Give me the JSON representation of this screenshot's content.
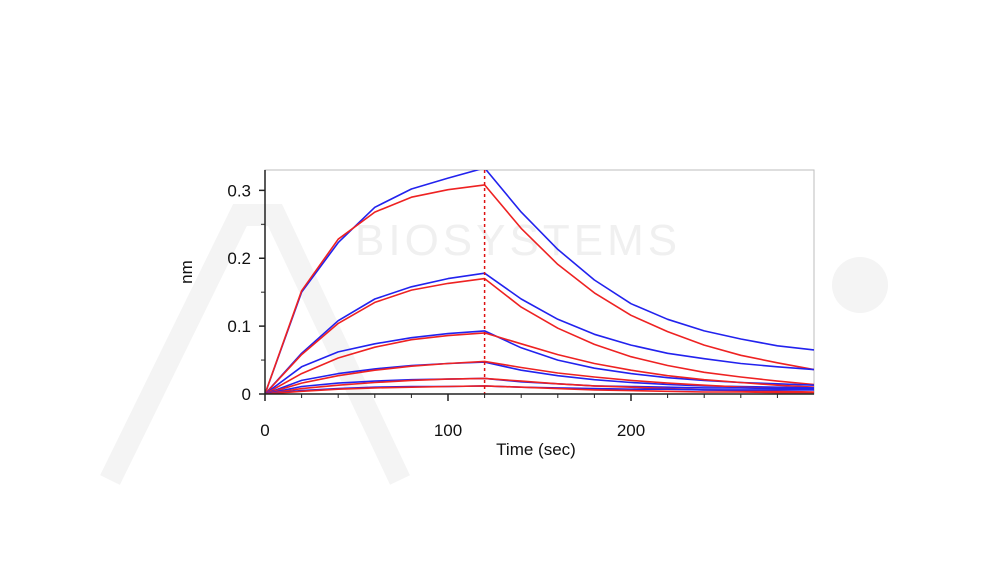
{
  "chart_data": {
    "type": "line",
    "xlabel": "Time (sec)",
    "ylabel": "nm",
    "xlim": [
      0,
      300
    ],
    "ylim": [
      0,
      0.33
    ],
    "x_ticks": [
      0,
      100,
      200
    ],
    "y_ticks": [
      0,
      0.1,
      0.2,
      0.3
    ],
    "x_tick_labels": [
      "0",
      "100",
      "200"
    ],
    "y_tick_labels": [
      "0",
      "0.1",
      "0.2",
      "0.3"
    ],
    "grid": false,
    "legend": false,
    "divider_x": 120,
    "colors": {
      "measured": "#2222ee",
      "fit": "#ee2222",
      "divider": "#dd1111",
      "axis": "#222222"
    },
    "series": [
      {
        "kind": "measured",
        "x": [
          0,
          20,
          40,
          60,
          80,
          100,
          120,
          140,
          160,
          180,
          200,
          220,
          240,
          260,
          280,
          300
        ],
        "y": [
          0,
          0.15,
          0.223,
          0.275,
          0.302,
          0.318,
          0.333,
          0.268,
          0.213,
          0.168,
          0.133,
          0.11,
          0.093,
          0.081,
          0.071,
          0.065
        ]
      },
      {
        "kind": "fit",
        "x": [
          0,
          20,
          40,
          60,
          80,
          100,
          120,
          140,
          160,
          180,
          200,
          220,
          240,
          260,
          280,
          300
        ],
        "y": [
          0,
          0.152,
          0.228,
          0.268,
          0.29,
          0.301,
          0.308,
          0.244,
          0.191,
          0.149,
          0.116,
          0.092,
          0.072,
          0.057,
          0.046,
          0.036
        ]
      },
      {
        "kind": "measured",
        "x": [
          0,
          20,
          40,
          60,
          80,
          100,
          120,
          140,
          160,
          180,
          200,
          220,
          240,
          260,
          280,
          300
        ],
        "y": [
          0,
          0.06,
          0.108,
          0.14,
          0.158,
          0.17,
          0.178,
          0.14,
          0.11,
          0.088,
          0.072,
          0.06,
          0.052,
          0.045,
          0.04,
          0.036
        ]
      },
      {
        "kind": "fit",
        "x": [
          0,
          20,
          40,
          60,
          80,
          100,
          120,
          140,
          160,
          180,
          200,
          220,
          240,
          260,
          280,
          300
        ],
        "y": [
          0,
          0.058,
          0.104,
          0.135,
          0.153,
          0.163,
          0.17,
          0.128,
          0.097,
          0.073,
          0.055,
          0.042,
          0.032,
          0.025,
          0.019,
          0.014
        ]
      },
      {
        "kind": "measured",
        "x": [
          0,
          20,
          40,
          60,
          80,
          100,
          120,
          140,
          160,
          180,
          200,
          220,
          240,
          260,
          280,
          300
        ],
        "y": [
          0,
          0.04,
          0.062,
          0.074,
          0.083,
          0.089,
          0.093,
          0.068,
          0.05,
          0.038,
          0.03,
          0.024,
          0.02,
          0.017,
          0.015,
          0.013
        ]
      },
      {
        "kind": "fit",
        "x": [
          0,
          20,
          40,
          60,
          80,
          100,
          120,
          140,
          160,
          180,
          200,
          220,
          240,
          260,
          280,
          300
        ],
        "y": [
          0,
          0.03,
          0.053,
          0.069,
          0.08,
          0.086,
          0.09,
          0.074,
          0.058,
          0.045,
          0.035,
          0.027,
          0.021,
          0.017,
          0.013,
          0.01
        ]
      },
      {
        "kind": "measured",
        "x": [
          0,
          20,
          40,
          60,
          80,
          100,
          120,
          140,
          160,
          180,
          200,
          220,
          240,
          260,
          280,
          300
        ],
        "y": [
          0,
          0.02,
          0.03,
          0.037,
          0.042,
          0.045,
          0.047,
          0.035,
          0.027,
          0.021,
          0.017,
          0.014,
          0.012,
          0.011,
          0.01,
          0.009
        ]
      },
      {
        "kind": "fit",
        "x": [
          0,
          20,
          40,
          60,
          80,
          100,
          120,
          140,
          160,
          180,
          200,
          220,
          240,
          260,
          280,
          300
        ],
        "y": [
          0,
          0.016,
          0.027,
          0.035,
          0.041,
          0.045,
          0.048,
          0.039,
          0.031,
          0.025,
          0.02,
          0.016,
          0.013,
          0.01,
          0.008,
          0.007
        ]
      },
      {
        "kind": "measured",
        "x": [
          0,
          20,
          40,
          60,
          80,
          100,
          120,
          140,
          160,
          180,
          200,
          220,
          240,
          260,
          280,
          300
        ],
        "y": [
          0,
          0.011,
          0.016,
          0.019,
          0.021,
          0.022,
          0.023,
          0.018,
          0.015,
          0.012,
          0.011,
          0.01,
          0.009,
          0.009,
          0.008,
          0.008
        ]
      },
      {
        "kind": "fit",
        "x": [
          0,
          20,
          40,
          60,
          80,
          100,
          120,
          140,
          160,
          180,
          200,
          220,
          240,
          260,
          280,
          300
        ],
        "y": [
          0,
          0.008,
          0.013,
          0.017,
          0.02,
          0.022,
          0.023,
          0.019,
          0.015,
          0.012,
          0.01,
          0.008,
          0.006,
          0.005,
          0.004,
          0.003
        ]
      },
      {
        "kind": "measured",
        "x": [
          0,
          20,
          40,
          60,
          80,
          100,
          120,
          140,
          160,
          180,
          200,
          220,
          240,
          260,
          280,
          300
        ],
        "y": [
          0,
          0.005,
          0.008,
          0.01,
          0.011,
          0.011,
          0.012,
          0.01,
          0.009,
          0.008,
          0.007,
          0.007,
          0.006,
          0.006,
          0.006,
          0.006
        ]
      },
      {
        "kind": "fit",
        "x": [
          0,
          20,
          40,
          60,
          80,
          100,
          120,
          140,
          160,
          180,
          200,
          220,
          240,
          260,
          280,
          300
        ],
        "y": [
          0,
          0.004,
          0.007,
          0.009,
          0.01,
          0.011,
          0.012,
          0.01,
          0.008,
          0.006,
          0.005,
          0.004,
          0.003,
          0.003,
          0.002,
          0.002
        ]
      }
    ]
  },
  "watermark": {
    "text": "BIOSYSTEMS",
    "logo_text": "Acro"
  }
}
